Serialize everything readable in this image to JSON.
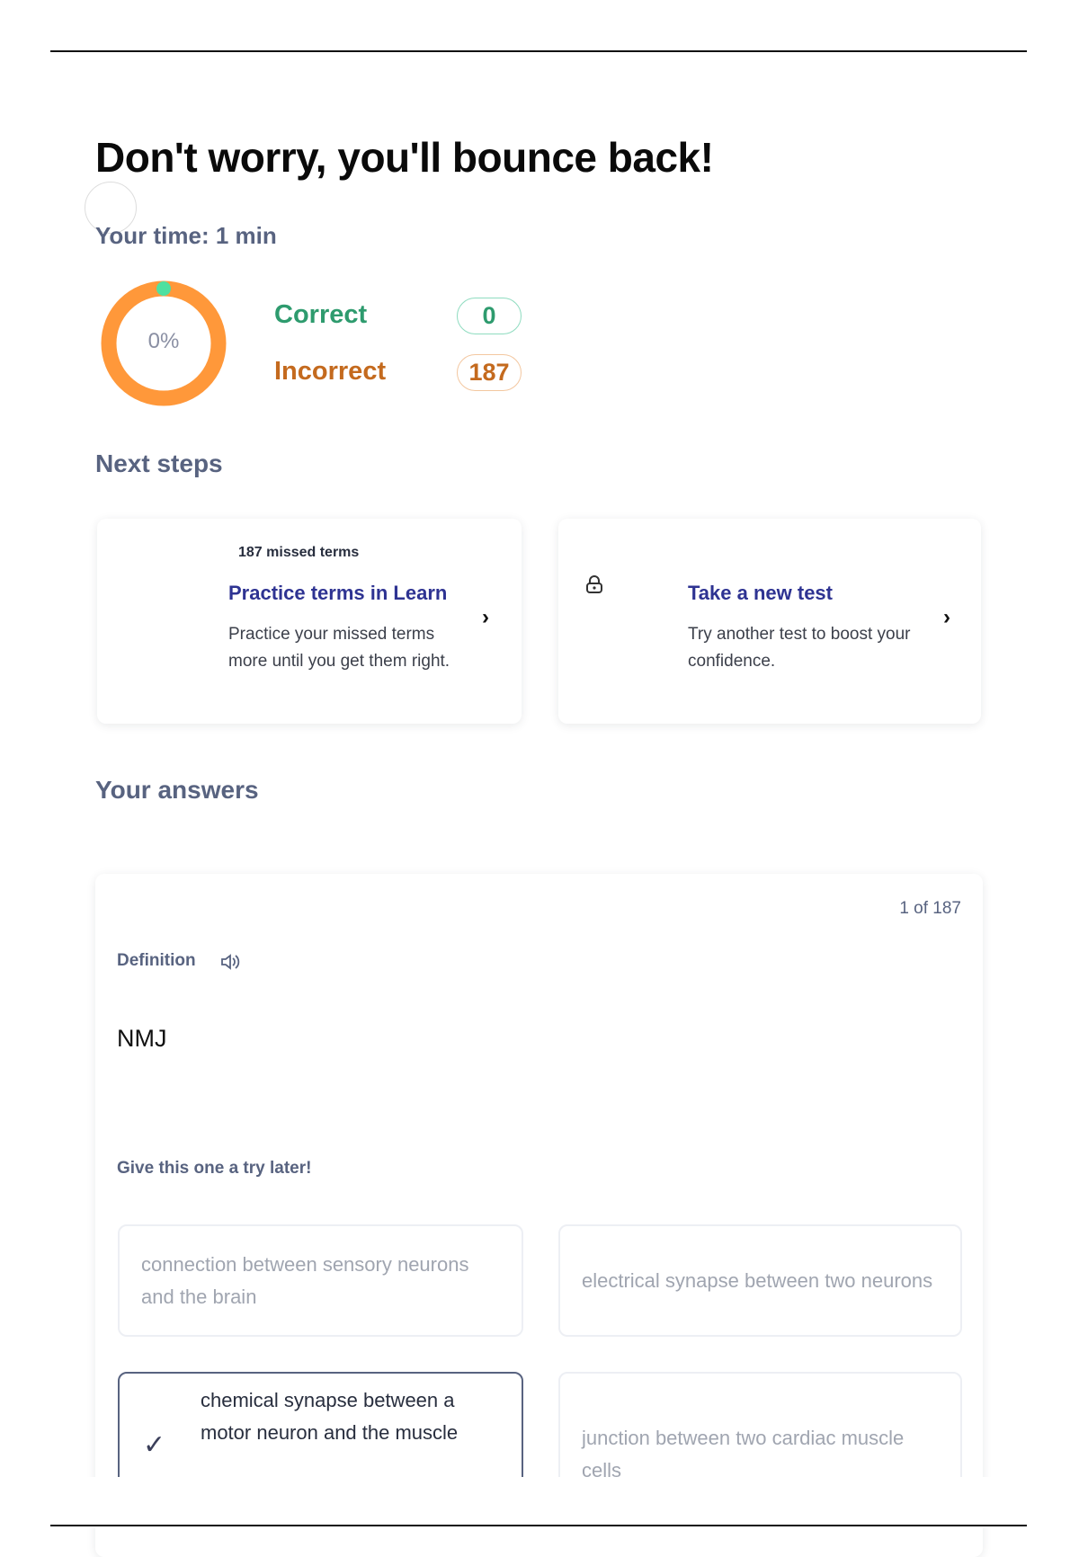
{
  "header": {
    "title": "Don't worry, you'll bounce back!",
    "time_label": "Your time: 1 min"
  },
  "score": {
    "percent_label": "0%",
    "correct_fraction": 0,
    "correct_label": "Correct",
    "correct_count": "0",
    "incorrect_label": "Incorrect",
    "incorrect_count": "187",
    "colors": {
      "correct": "#23b26d",
      "incorrect": "#ff983a",
      "correct_text": "#2e9b6e",
      "incorrect_text": "#c46a1e"
    }
  },
  "next_steps": {
    "heading": "Next steps",
    "cards": [
      {
        "eyebrow": "187 missed terms",
        "title": "Practice terms in Learn",
        "description": "Practice your missed terms more until you get them right.",
        "icon": "chevron-right-icon"
      },
      {
        "title": "Take a new test",
        "description": "Try another test to boost your confidence.",
        "icon": "lock-icon"
      }
    ]
  },
  "answers": {
    "heading": "Your answers",
    "counter": "1 of 187",
    "side_label": "Definition",
    "audio_icon": "speaker-icon",
    "term": "NMJ",
    "feedback": "Give this one a try later!",
    "options": [
      {
        "text": "connection between sensory neurons and the brain",
        "correct": false
      },
      {
        "text": "electrical synapse between two neurons",
        "correct": false
      },
      {
        "text": "chemical synapse between a motor neuron and the muscle",
        "correct": true
      },
      {
        "text": "junction between two cardiac muscle cells",
        "correct": false
      }
    ]
  }
}
